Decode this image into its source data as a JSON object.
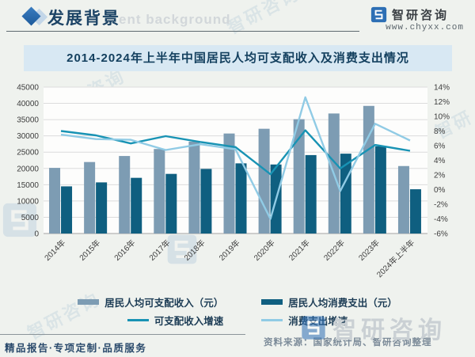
{
  "header": {
    "section_title": "发展背景",
    "watermark_text": "ent background",
    "brand_name": "智研咨询",
    "website": "www.chyxx.com"
  },
  "chart_title": "2014-2024年上半年中国居民人均可支配收入及消费支出情况",
  "chart_data": {
    "type": "bar+line combo",
    "title": "2014-2024年上半年中国居民人均可支配收入及消费支出情况",
    "categories": [
      "2014年",
      "2015年",
      "2016年",
      "2017年",
      "2018年",
      "2019年",
      "2020年",
      "2021年",
      "2022年",
      "2023年",
      "2024年上半年"
    ],
    "bar_series": [
      {
        "name": "居民人均可支配收入（元）",
        "axis": "left",
        "color": "#7d9cb3",
        "values": [
          20167,
          21966,
          23821,
          25974,
          28228,
          30733,
          32189,
          35128,
          36883,
          39218,
          20733
        ]
      },
      {
        "name": "居民人均消费支出（元）",
        "axis": "left",
        "color": "#0f5f80",
        "values": [
          14491,
          15712,
          17111,
          18322,
          19853,
          21559,
          21210,
          24100,
          24538,
          26796,
          13601
        ]
      }
    ],
    "line_series": [
      {
        "name": "可支配收入增速",
        "axis": "right",
        "color": "#1893b4",
        "values": [
          8.0,
          7.4,
          6.3,
          7.3,
          6.5,
          5.8,
          2.1,
          8.1,
          2.9,
          6.1,
          5.3
        ]
      },
      {
        "name": "消费支出增速",
        "axis": "right",
        "color": "#90cbe5",
        "values": [
          7.5,
          6.9,
          6.8,
          5.4,
          6.2,
          5.5,
          -4.0,
          12.6,
          -0.2,
          9.0,
          6.7
        ]
      }
    ],
    "left_axis": {
      "min": 0,
      "max": 45000,
      "step": 5000,
      "labels_top_to_bottom": [
        "45000",
        "40000",
        "35000",
        "30000",
        "25000",
        "20000",
        "15000",
        "10000",
        "5000",
        "0"
      ]
    },
    "right_axis": {
      "min": -6,
      "max": 14,
      "step": 2,
      "unit": "%",
      "labels_top_to_bottom": [
        "14%",
        "12%",
        "10%",
        "8%",
        "6%",
        "4%",
        "2%",
        "0%",
        "-2%",
        "-4%",
        "-6%"
      ]
    },
    "grid": true,
    "legend_position": "bottom"
  },
  "footer": {
    "source": "资料来源：国家统计局、智研咨询整理",
    "tagline": "精品报告·专项定制·品质服务",
    "watermark_brand": "智研咨询"
  },
  "colors": {
    "income_bar": "#7d9cb3",
    "expenditure_bar": "#0f5f80",
    "income_line": "#1893b4",
    "expenditure_line": "#90cbe5",
    "title_box_bg": "#d8e8f3",
    "accent_navy": "#1d4466",
    "logo_blue": "#2d6fb5",
    "grid_line": "#dcdcdc"
  }
}
